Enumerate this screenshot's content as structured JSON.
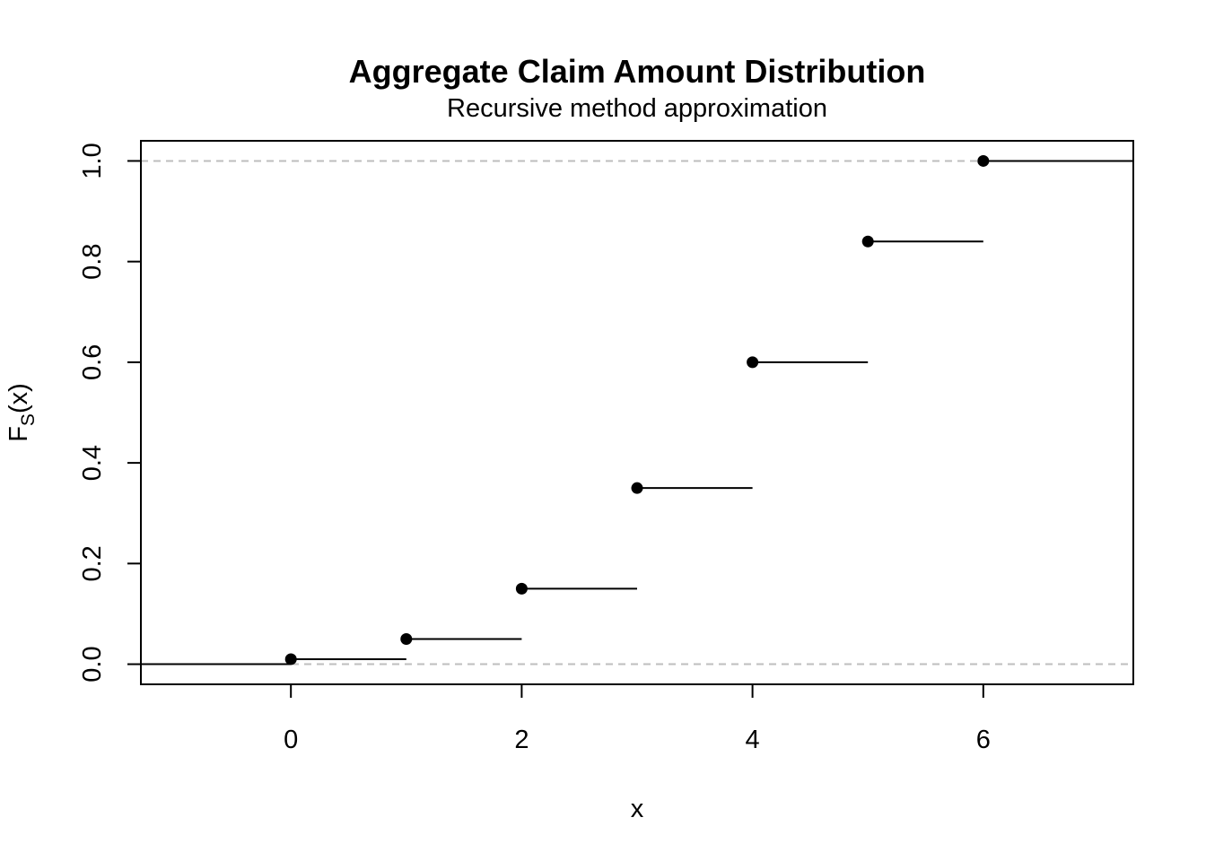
{
  "chart_data": {
    "type": "step",
    "title": "Aggregate Claim Amount Distribution",
    "subtitle": "Recursive method approximation",
    "xlabel": "x",
    "ylabel_main": "F",
    "ylabel_sub": "S",
    "ylabel_suffix": "(x)",
    "xlim": [
      -1.3,
      7.3
    ],
    "ylim": [
      -0.04,
      1.04
    ],
    "x_ticks": [
      0,
      2,
      4,
      6
    ],
    "x_tick_labels": [
      "0",
      "2",
      "4",
      "6"
    ],
    "y_ticks": [
      0.0,
      0.2,
      0.4,
      0.6,
      0.8,
      1.0
    ],
    "y_tick_labels": [
      "0.0",
      "0.2",
      "0.4",
      "0.6",
      "0.8",
      "1.0"
    ],
    "reference_lines": [
      0,
      1
    ],
    "points": [
      {
        "x": 0,
        "y": 0.01
      },
      {
        "x": 1,
        "y": 0.05
      },
      {
        "x": 2,
        "y": 0.15
      },
      {
        "x": 3,
        "y": 0.35
      },
      {
        "x": 4,
        "y": 0.6
      },
      {
        "x": 5,
        "y": 0.84
      },
      {
        "x": 6,
        "y": 1.0
      }
    ],
    "left_tail_y": 0,
    "grid": false,
    "colors": {
      "steps": "#000000",
      "reference": "#bebebe"
    }
  }
}
